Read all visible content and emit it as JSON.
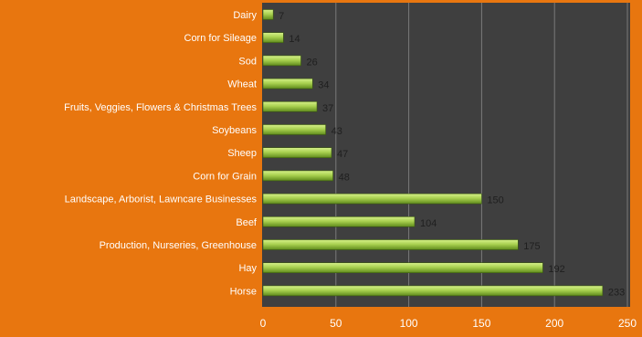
{
  "chart_data": {
    "type": "bar",
    "orientation": "horizontal",
    "title": "",
    "xlabel": "",
    "ylabel": "",
    "categories": [
      "Dairy",
      "Corn for Sileage",
      "Sod",
      "Wheat",
      "Fruits, Veggies, Flowers & Christmas Trees",
      "Soybeans",
      "Sheep",
      "Corn for Grain",
      "Landscape, Arborist, Lawncare Businesses",
      "Beef",
      "Production, Nurseries, Greenhouse",
      "Hay",
      "Horse"
    ],
    "values": [
      7,
      14,
      26,
      34,
      37,
      43,
      47,
      48,
      150,
      104,
      175,
      192,
      233
    ],
    "value_labels": [
      "7",
      "14",
      "26",
      "34",
      "37",
      "43",
      "47",
      "48",
      "150",
      "104",
      "175",
      "192",
      "233"
    ],
    "xlim": [
      0,
      250
    ],
    "x_ticks": [
      "0",
      "50",
      "100",
      "150",
      "200",
      "250"
    ],
    "x_tick_values": [
      0,
      50,
      100,
      150,
      200,
      250
    ],
    "grid": "vertical",
    "legend": "none",
    "colors": {
      "background": "#e8760f",
      "plot_area": "#3f3f3f",
      "bar_light": "#d6f08a",
      "bar_mid": "#a9d150",
      "bar_dark": "#5f8a1c",
      "grid": "#7a7a7a",
      "category_text": "#ffffff",
      "value_text": "#1f1f1f",
      "tick_text": "#ffffff"
    }
  }
}
